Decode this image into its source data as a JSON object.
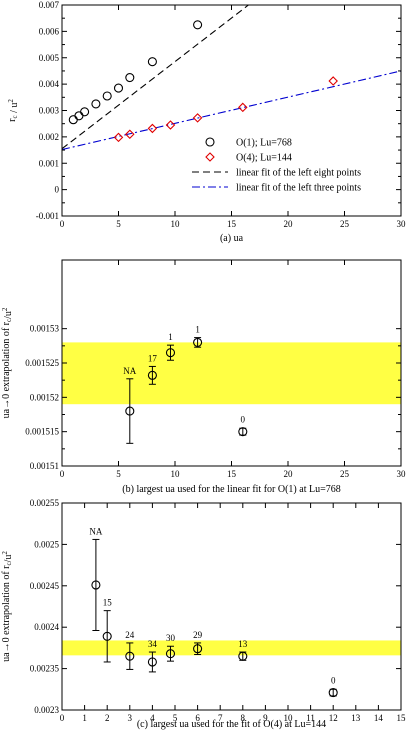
{
  "chart_data": [
    {
      "type": "scatter",
      "caption": "(a)   ua",
      "ylabel": "r_c / u^2",
      "xlim": [
        0,
        30
      ],
      "ylim": [
        -0.001,
        0.007
      ],
      "xticks": [
        0,
        5,
        10,
        15,
        20,
        25,
        30
      ],
      "yticks": [
        -0.001,
        0,
        0.001,
        0.002,
        0.003,
        0.004,
        0.005,
        0.006,
        0.007
      ],
      "ytick_labels": [
        "-0.001",
        "0",
        "0.001",
        "0.002",
        "0.003",
        "0.004",
        "0.005",
        "0.006",
        "0.007"
      ],
      "series": [
        {
          "name": "O(1); Lu=768",
          "marker": "circle",
          "color": "#000000",
          "x": [
            1,
            1.5,
            2,
            3,
            4,
            5,
            6,
            8,
            12
          ],
          "y": [
            0.00265,
            0.0028,
            0.00295,
            0.00325,
            0.00355,
            0.00385,
            0.00425,
            0.00485,
            0.00625
          ]
        },
        {
          "name": "O(4); Lu=144",
          "marker": "diamond",
          "color": "#e00000",
          "x": [
            5,
            6,
            8,
            9.6,
            12,
            16,
            24
          ],
          "y": [
            0.00198,
            0.0021,
            0.00232,
            0.00245,
            0.00272,
            0.00312,
            0.00412
          ]
        },
        {
          "name": "linear fit of the left eight points",
          "style": "dashed",
          "color": "#000000",
          "x": [
            0,
            16.5
          ],
          "y": [
            0.00155,
            0.007
          ]
        },
        {
          "name": "linear fit of the left three points",
          "style": "dash-dot",
          "color": "#0000d0",
          "x": [
            0,
            30
          ],
          "y": [
            0.00152,
            0.0045
          ]
        }
      ],
      "legend_position": "center-right"
    },
    {
      "type": "scatter",
      "caption": "(b) largest ua used for the linear fit for O(1) at Lu=768",
      "ylabel": "ua→0 extrapolation of r_c/u^2",
      "xlim": [
        0,
        30
      ],
      "ylim": [
        0.00151,
        0.00154
      ],
      "xticks": [
        0,
        5,
        10,
        15,
        20,
        25,
        30
      ],
      "yticks": [
        0.00151,
        0.001515,
        0.00152,
        0.001525,
        0.00153
      ],
      "ytick_labels": [
        "0.00151",
        "0.001515",
        "0.00152",
        "0.001525",
        "0.00153"
      ],
      "band": [
        0.001519,
        0.001528
      ],
      "band_color": "#ffff44",
      "points": [
        {
          "x": 6,
          "y": 0.001518,
          "err": 4.7e-06,
          "label": "NA"
        },
        {
          "x": 8,
          "y": 0.0015232,
          "err": 1.3e-06,
          "label": "17"
        },
        {
          "x": 9.6,
          "y": 0.0015265,
          "err": 1.1e-06,
          "label": "1"
        },
        {
          "x": 12,
          "y": 0.001528,
          "err": 7e-07,
          "label": "1"
        },
        {
          "x": 16,
          "y": 0.001515,
          "err": 5e-07,
          "label": "0"
        }
      ]
    },
    {
      "type": "scatter",
      "caption": "(c)  largest ua used for the fit of O(4) at Lu=144",
      "ylabel": "ua→0 extrapolation of r_c/u^2",
      "xlim": [
        0,
        15
      ],
      "ylim": [
        0.0023,
        0.00255
      ],
      "xticks": [
        0,
        1,
        2,
        3,
        4,
        5,
        6,
        7,
        8,
        9,
        10,
        11,
        12,
        13,
        14,
        15
      ],
      "yticks": [
        0.0023,
        0.00235,
        0.0024,
        0.00245,
        0.0025,
        0.00255
      ],
      "ytick_labels": [
        "0.0023",
        "0.00235",
        "0.0024",
        "0.00245",
        "0.0025",
        "0.00255"
      ],
      "band": [
        0.002366,
        0.002384
      ],
      "band_color": "#ffff44",
      "points": [
        {
          "x": 1.5,
          "y": 0.002451,
          "err": 5.5e-05,
          "label": "NA"
        },
        {
          "x": 2,
          "y": 0.002389,
          "err": 3.1e-05,
          "label": "15"
        },
        {
          "x": 3,
          "y": 0.002365,
          "err": 1.6e-05,
          "label": "24"
        },
        {
          "x": 4,
          "y": 0.002358,
          "err": 1.2e-05,
          "label": "34"
        },
        {
          "x": 4.8,
          "y": 0.002368,
          "err": 9e-06,
          "label": "30"
        },
        {
          "x": 6,
          "y": 0.002374,
          "err": 7e-06,
          "label": "29"
        },
        {
          "x": 8,
          "y": 0.002365,
          "err": 5e-06,
          "label": "13"
        },
        {
          "x": 12,
          "y": 0.002321,
          "err": 4e-06,
          "label": "0"
        }
      ]
    }
  ]
}
